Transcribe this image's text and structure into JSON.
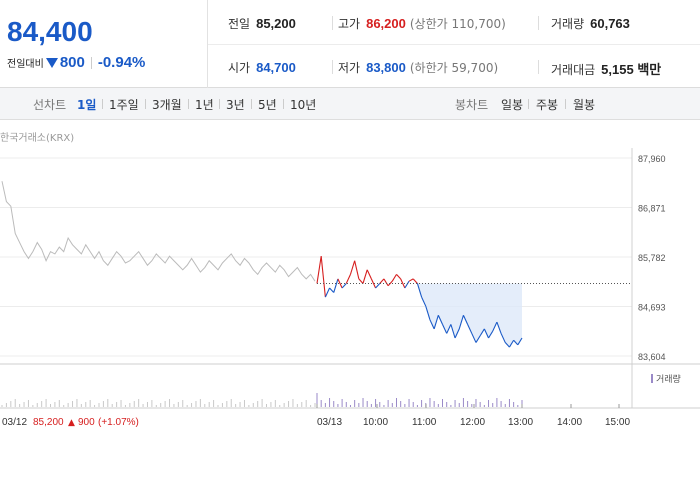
{
  "quote": {
    "price": "84,400",
    "change_label": "전일대비",
    "change_value": "800",
    "change_pct": "-0.94%"
  },
  "stats": {
    "prev_close": {
      "label": "전일",
      "value": "85,200"
    },
    "high": {
      "label": "고가",
      "value": "86,200",
      "limit": "(상한가 110,700)"
    },
    "volume": {
      "label": "거래량",
      "value": "60,763"
    },
    "open": {
      "label": "시가",
      "value": "84,700"
    },
    "low": {
      "label": "저가",
      "value": "83,800",
      "limit": "(하한가 59,700)"
    },
    "amount": {
      "label": "거래대금",
      "value": "5,155 백만"
    }
  },
  "tabs": {
    "line_label": "선차트",
    "line_items": [
      "1일",
      "1주일",
      "3개월",
      "1년",
      "3년",
      "5년",
      "10년"
    ],
    "line_active": 0,
    "candle_label": "봉차트",
    "candle_items": [
      "일봉",
      "주봉",
      "월봉"
    ]
  },
  "colors": {
    "up": "#d61f1f",
    "down": "#1a5ac7",
    "prev": "#bbbbbb",
    "fill": "#dde9f9"
  },
  "chart_data": {
    "type": "line",
    "source": "한국거래소(KRX)",
    "y_ticks": [
      "87,960",
      "86,871",
      "85,782",
      "84,693",
      "83,604"
    ],
    "ylim": [
      83604,
      87960
    ],
    "reference_price": 85200,
    "x_ticks": [
      "03/12",
      "03/13",
      "10:00",
      "11:00",
      "12:00",
      "13:00",
      "14:00",
      "15:00"
    ],
    "prev_day_note": {
      "date": "03/12",
      "price": "85,200",
      "change": "900",
      "pct": "(+1.07%)"
    },
    "prev_day_series": {
      "name": "03/12",
      "values": [
        87450,
        87000,
        86900,
        86300,
        86100,
        85900,
        85750,
        85900,
        86100,
        85950,
        85700,
        85900,
        85850,
        86000,
        85900,
        86200,
        86050,
        85950,
        85850,
        86050,
        85900,
        85750,
        85900,
        85700,
        85600,
        85750,
        85900,
        85800,
        85650,
        85700,
        85800,
        85900,
        85750,
        85600,
        85700,
        85850,
        85750,
        85650,
        85800,
        85700,
        85600,
        85500,
        85600,
        85750,
        85600,
        85450,
        85550,
        85700,
        85600,
        85500,
        85650,
        85750,
        85850,
        85700,
        85600,
        85750,
        85650,
        85500,
        85400,
        85550,
        85650,
        85550,
        85450,
        85600,
        85500,
        85350,
        85450,
        85550,
        85400,
        85300,
        85400,
        85250
      ]
    },
    "today_series": {
      "name": "03/13",
      "values": [
        85200,
        85800,
        84900,
        85100,
        85000,
        85300,
        85100,
        85200,
        85400,
        85700,
        85300,
        85200,
        85500,
        85300,
        85100,
        85200,
        85300,
        85150,
        85250,
        85400,
        85300,
        85100,
        85250,
        85300,
        85200,
        84900,
        84700,
        84400,
        84200,
        84500,
        84300,
        84100,
        84300,
        84000,
        84200,
        84500,
        84300,
        84100,
        83900,
        84050,
        84200,
        84000,
        84150,
        84350,
        84100,
        83900,
        83800,
        83950,
        83850,
        84000
      ]
    },
    "volume_legend": "거래량"
  }
}
